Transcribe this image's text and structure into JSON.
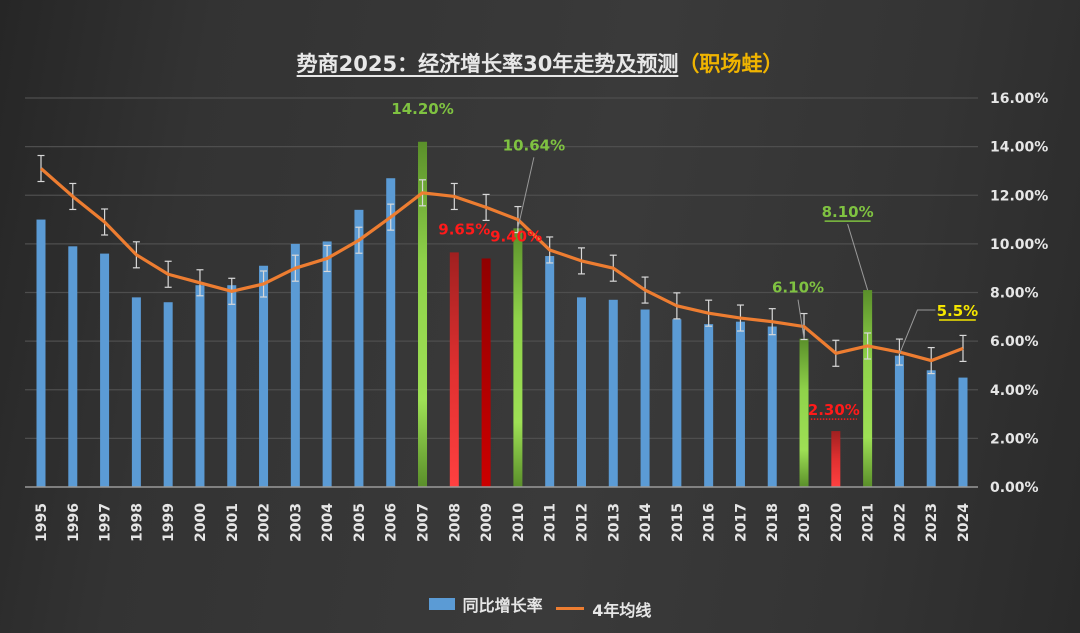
{
  "chart_data": {
    "type": "bar",
    "title": "势商2025：经济增长率30年走势及预测",
    "title_suffix": "（职场蛙）",
    "xlabel": "",
    "ylabel": "",
    "ylim": [
      0,
      16
    ],
    "y_ticks": [
      "0.00%",
      "2.00%",
      "4.00%",
      "6.00%",
      "8.00%",
      "10.00%",
      "12.00%",
      "14.00%",
      "16.00%"
    ],
    "y_tick_values": [
      0,
      2,
      4,
      6,
      8,
      10,
      12,
      14,
      16
    ],
    "y_axis_position": "right",
    "grid": true,
    "legend_position": "bottom",
    "categories": [
      "1995",
      "1996",
      "1997",
      "1998",
      "1999",
      "2000",
      "2001",
      "2002",
      "2003",
      "2004",
      "2005",
      "2006",
      "2007",
      "2008",
      "2009",
      "2010",
      "2011",
      "2012",
      "2013",
      "2014",
      "2015",
      "2016",
      "2017",
      "2018",
      "2019",
      "2020",
      "2021",
      "2022",
      "2023",
      "2024"
    ],
    "series": [
      {
        "name": "同比增长率",
        "type": "bar",
        "color": "#5b9bd5",
        "values": [
          11.0,
          9.9,
          9.6,
          7.8,
          7.6,
          8.3,
          8.3,
          9.1,
          10.0,
          10.1,
          11.4,
          12.7,
          14.2,
          9.65,
          9.4,
          10.64,
          9.5,
          7.8,
          7.7,
          7.3,
          6.9,
          6.7,
          6.8,
          6.6,
          6.1,
          2.3,
          8.1,
          5.4,
          4.8,
          4.5
        ],
        "highlight_colors": {
          "2007": "green",
          "2008": "red",
          "2009": "red",
          "2010": "green",
          "2019": "green",
          "2020": "red",
          "2021": "green"
        }
      },
      {
        "name": "4年均线",
        "type": "line",
        "color": "#ed7d31",
        "error_bars": true,
        "values": [
          13.1,
          11.95,
          10.9,
          9.55,
          8.75,
          8.4,
          8.05,
          8.35,
          9.0,
          9.4,
          10.15,
          11.1,
          12.1,
          11.95,
          11.5,
          11.0,
          9.75,
          9.3,
          9.0,
          8.1,
          7.45,
          7.15,
          6.95,
          6.8,
          6.6,
          5.5,
          5.8,
          5.55,
          5.2,
          5.7
        ]
      }
    ],
    "annotations": [
      {
        "text": "14.20%",
        "category": "2007",
        "color": "#7fc241",
        "underline": "none"
      },
      {
        "text": "9.65%",
        "category": "2008",
        "color": "#ff1a1a",
        "underline": "none"
      },
      {
        "text": "9.40%",
        "category": "2009",
        "color": "#ff1a1a",
        "underline": "none"
      },
      {
        "text": "10.64%",
        "category": "2010",
        "color": "#7fc241",
        "underline": "none"
      },
      {
        "text": "6.10%",
        "category": "2019",
        "color": "#7fc241",
        "underline": "none"
      },
      {
        "text": "2.30%",
        "category": "2020",
        "color": "#ff1a1a",
        "underline": "dotted"
      },
      {
        "text": "8.10%",
        "category": "2021",
        "color": "#7fc241",
        "underline": "solid"
      },
      {
        "text": "5.5%",
        "category": "2022",
        "color": "#f5e600",
        "underline": "solid"
      }
    ]
  },
  "legend": {
    "bar_label": "同比增长率",
    "line_label": "4年均线"
  }
}
